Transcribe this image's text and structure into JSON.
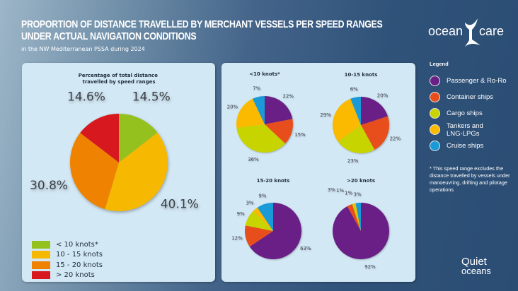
{
  "header": {
    "title_line1": "PROPORTION OF DISTANCE TRAVELLED BY MERCHANT VESSELS PER SPEED RANGES",
    "title_line2": "UNDER ACTUAL NAVIGATION CONDITIONS",
    "subtitle": "in the NW Mediterranean PSSA during 2024",
    "logo": "ocean care",
    "logo2_line1": "Quiet",
    "logo2_line2": "oceans"
  },
  "legend": {
    "title": "Legend",
    "items": [
      {
        "label": "Passenger & Ro-Ro",
        "color": "#6a1f86"
      },
      {
        "label": "Container ships",
        "color": "#e84e1b"
      },
      {
        "label": "Cargo ships",
        "color": "#c8d400"
      },
      {
        "label": "Tankers and LNG-LPGs",
        "color": "#fbb900"
      },
      {
        "label": "Cruise ships",
        "color": "#1a9ad6"
      }
    ],
    "note_mark": "*",
    "note": "This speed range excludes the distance travelled by vessels under manoeuvring, drifting and pilotage operations"
  },
  "chart_data": [
    {
      "type": "pie",
      "title": "Percentage of total distance travelled by speed ranges",
      "categories": [
        "< 10 knots*",
        "10 - 15 knots",
        "15 - 20 knots",
        "> 20 knots"
      ],
      "values": [
        14.5,
        40.1,
        30.8,
        14.6
      ],
      "labels": [
        "14.5%",
        "40.1%",
        "30.8%",
        "14.6%"
      ],
      "colors": [
        "#95c11f",
        "#f6b800",
        "#ef8200",
        "#d7191f"
      ],
      "legend_placement": "bottom-left"
    },
    {
      "type": "pie",
      "title": "<10 knots*",
      "categories": [
        "Passenger & Ro-Ro",
        "Container ships",
        "Cargo ships",
        "Tankers and LNG-LPGs",
        "Cruise ships"
      ],
      "values": [
        22,
        15,
        36,
        20,
        7
      ],
      "labels": [
        "22%",
        "15%",
        "36%",
        "20%",
        "7%"
      ]
    },
    {
      "type": "pie",
      "title": "10-15 knots",
      "categories": [
        "Passenger & Ro-Ro",
        "Container ships",
        "Cargo ships",
        "Tankers and LNG-LPGs",
        "Cruise ships"
      ],
      "values": [
        20,
        22,
        23,
        29,
        6
      ],
      "labels": [
        "20%",
        "22%",
        "23%",
        "29%",
        "6%"
      ]
    },
    {
      "type": "pie",
      "title": "15-20 knots",
      "categories": [
        "Passenger & Ro-Ro",
        "Container ships",
        "Cargo ships",
        "Tankers and LNG-LPGs",
        "Cruise ships"
      ],
      "values": [
        63,
        12,
        9,
        3,
        9
      ],
      "labels": [
        "63%",
        "12%",
        "9%",
        "3%",
        "9%"
      ]
    },
    {
      "type": "pie",
      "title": ">20 knots",
      "categories": [
        "Passenger & Ro-Ro",
        "Container ships",
        "Cargo ships",
        "Tankers and LNG-LPGs",
        "Cruise ships"
      ],
      "values": [
        92,
        3,
        1,
        1,
        3
      ],
      "labels": [
        "92%",
        "3%",
        "1%",
        "1%",
        "3%"
      ]
    }
  ]
}
